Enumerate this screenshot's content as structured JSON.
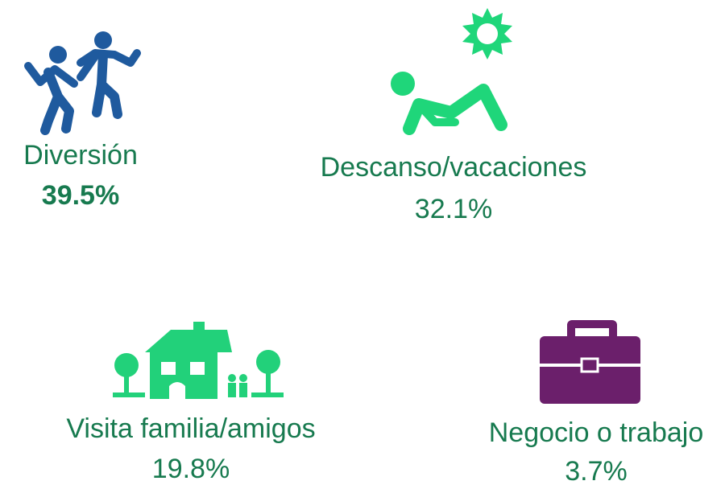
{
  "items": [
    {
      "label": "Diversión",
      "value": "39.5%"
    },
    {
      "label": "Descanso/vacaciones",
      "value": "32.1%"
    },
    {
      "label": "Visita familia/amigos",
      "value": "19.8%"
    },
    {
      "label": "Negocio o trabajo",
      "value": "3.7%"
    }
  ]
}
